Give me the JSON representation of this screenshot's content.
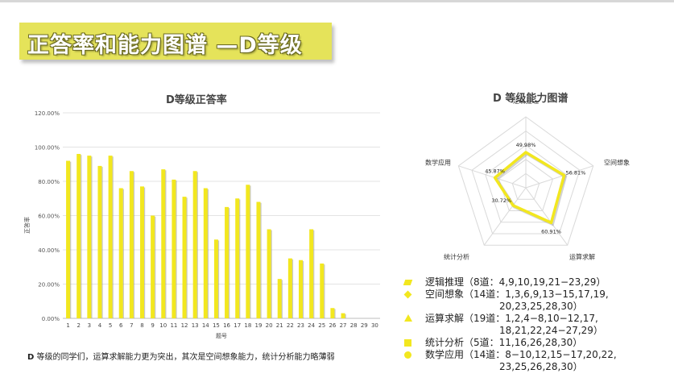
{
  "banner": {
    "title": "正答率和能力图谱 —D等级"
  },
  "bar_chart_title": "D等级正答率",
  "radar_chart_title": "D 等级能力图谱",
  "note": {
    "prefix": "D",
    "text": " 等级的同学们，运算求解能力更为突出，其次是空间想象能力，统计分析能力略薄弱"
  },
  "chart_data": [
    {
      "type": "bar",
      "title": "D等级正答率",
      "xlabel": "题号",
      "ylabel": "正答率",
      "y_tick_labels": [
        "0.00%",
        "20.00%",
        "40.00%",
        "60.00%",
        "80.00%",
        "100.00%",
        "120.00%"
      ],
      "ylim": [
        0,
        120
      ],
      "grid": true,
      "color": "#f2e71f",
      "categories": [
        "1",
        "2",
        "3",
        "4",
        "5",
        "6",
        "7",
        "8",
        "9",
        "10",
        "11",
        "12",
        "13",
        "14",
        "15",
        "16",
        "17",
        "18",
        "19",
        "20",
        "21",
        "22",
        "23",
        "24",
        "25",
        "26",
        "27",
        "28",
        "29",
        "30"
      ],
      "values": [
        92,
        96,
        95,
        89,
        95,
        76,
        86,
        77,
        60,
        87,
        81,
        71,
        86,
        76,
        46,
        65,
        70,
        78,
        68,
        52,
        23,
        35,
        34,
        52,
        32,
        6,
        3,
        0,
        0,
        0
      ]
    },
    {
      "type": "radar",
      "title": "D 等级能力图谱",
      "axes": [
        "逻辑推理",
        "空间想象",
        "运算求解",
        "统计分析",
        "数学应用"
      ],
      "values": [
        49.98,
        56.81,
        60.91,
        30.72,
        45.87
      ],
      "value_labels": [
        "49.98%",
        "56.81%",
        "60.91%",
        "30.72%",
        "45.87%"
      ],
      "rmax": 100,
      "color": "#f2e71f"
    }
  ],
  "legend": [
    {
      "marker": "para",
      "name": "逻辑推理",
      "detail": "（8道：4,9,10,19,21−23,29）",
      "cont": ""
    },
    {
      "marker": "dia",
      "name": "空间想象",
      "detail": "（14道：1,3,6,9,13−15,17,19,",
      "cont": "20,23,25,28,30）"
    },
    {
      "marker": "tri",
      "name": "运算求解",
      "detail": "（19道：1,2,4−8,10−12,17,",
      "cont": "18,21,22,24−27,29）"
    },
    {
      "marker": "sq",
      "name": "统计分析",
      "detail": "（5道：11,16,26,28,30）",
      "cont": ""
    },
    {
      "marker": "circ",
      "name": "数学应用",
      "detail": "（14道：8−10,12,15−17,20,22,",
      "cont": "23,25,26,28,30）"
    }
  ]
}
